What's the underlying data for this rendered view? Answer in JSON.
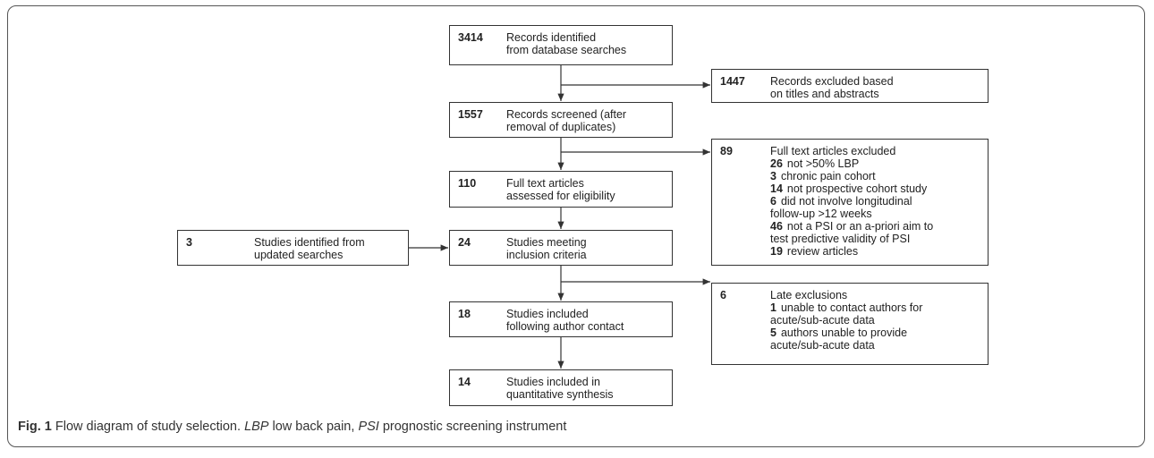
{
  "nodes": [
    {
      "count": "3414",
      "lines": [
        "Records identified",
        "from database searches"
      ]
    },
    {
      "count": "1447",
      "lines": [
        "Records excluded based",
        "on titles and abstracts"
      ]
    },
    {
      "count": "1557",
      "lines": [
        "Records screened (after",
        "removal of duplicates)"
      ]
    },
    {
      "count": "89",
      "lines": [
        "Full text articles excluded"
      ],
      "items": [
        {
          "count": "26",
          "lines": [
            "not >50% LBP"
          ]
        },
        {
          "count": "3",
          "lines": [
            "chronic pain cohort"
          ]
        },
        {
          "count": "14",
          "lines": [
            "not prospective cohort study"
          ]
        },
        {
          "count": "6",
          "lines": [
            "did not involve longitudinal",
            "follow-up >12 weeks"
          ]
        },
        {
          "count": "46",
          "lines": [
            "not a PSI or an a-priori aim to",
            "test predictive validity of PSI"
          ]
        },
        {
          "count": "19",
          "lines": [
            "review articles"
          ]
        }
      ]
    },
    {
      "count": "110",
      "lines": [
        "Full text articles",
        "assessed for eligibility"
      ]
    },
    {
      "count": "3",
      "lines": [
        "Studies identified from",
        "updated searches"
      ]
    },
    {
      "count": "24",
      "lines": [
        "Studies meeting",
        "inclusion criteria"
      ]
    },
    {
      "count": "6",
      "lines": [
        "Late exclusions"
      ],
      "items": [
        {
          "count": "1",
          "lines": [
            "unable to contact authors for",
            "acute/sub-acute data"
          ]
        },
        {
          "count": "5",
          "lines": [
            "authors unable to provide",
            "acute/sub-acute data"
          ]
        }
      ]
    },
    {
      "count": "18",
      "lines": [
        "Studies included",
        "following author contact"
      ]
    },
    {
      "count": "14",
      "lines": [
        "Studies included in",
        "quantitative synthesis"
      ]
    }
  ],
  "caption": {
    "label": "Fig. 1",
    "text": "Flow diagram of study selection.",
    "abbr1": "LBP",
    "def1": "low back pain,",
    "abbr2": "PSI",
    "def2": "prognostic screening instrument"
  }
}
